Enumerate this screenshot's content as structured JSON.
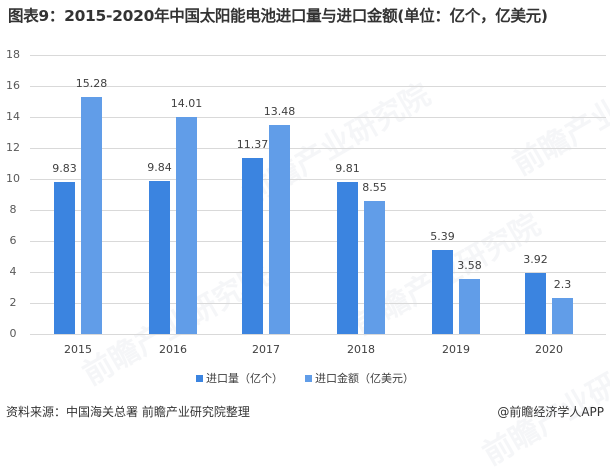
{
  "title": "图表9：2015-2020年中国太阳能电池进口量与进口金额(单位：亿个，亿美元)",
  "chart_data": {
    "type": "bar",
    "title": "图表9：2015-2020年中国太阳能电池进口量与进口金额(单位：亿个，亿美元)",
    "categories": [
      "2015",
      "2016",
      "2017",
      "2018",
      "2019",
      "2020"
    ],
    "series": [
      {
        "name": "进口量（亿个）",
        "color": "#3B84E0",
        "values": [
          9.83,
          9.84,
          11.37,
          9.81,
          5.39,
          3.92
        ]
      },
      {
        "name": "进口金额（亿美元）",
        "color": "#619DE8",
        "values": [
          15.28,
          14.01,
          13.48,
          8.55,
          3.58,
          2.3
        ]
      }
    ],
    "value_labels": {
      "s0": [
        "9.83",
        "9.84",
        "11.37",
        "9.81",
        "5.39",
        "3.92"
      ],
      "s1": [
        "15.28",
        "14.01",
        "13.48",
        "8.55",
        "3.58",
        "2.3"
      ]
    },
    "xlabel": "",
    "ylabel": "",
    "ylim": [
      0,
      18
    ],
    "yticks": [
      "0",
      "2",
      "4",
      "6",
      "8",
      "10",
      "12",
      "14",
      "16",
      "18"
    ],
    "grid": true,
    "legend_position": "bottom"
  },
  "legend": [
    {
      "label": "进口量（亿个）",
      "color": "#3B84E0"
    },
    {
      "label": "进口金额（亿美元）",
      "color": "#619DE8"
    }
  ],
  "footer": {
    "source": "资料来源：中国海关总署 前瞻产业研究院整理",
    "credit": "@前瞻经济学人APP"
  },
  "watermark": "前瞻产业研究院"
}
